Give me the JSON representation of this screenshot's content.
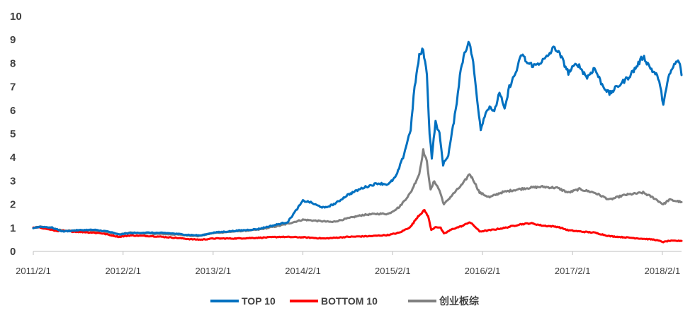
{
  "chart_data": {
    "type": "line",
    "title": "",
    "xlabel": "",
    "ylabel": "",
    "x_range": [
      "2011-02-01",
      "2018-04-20"
    ],
    "ylim": [
      0,
      10
    ],
    "y_ticks": [
      "0",
      "1",
      "2",
      "3",
      "4",
      "5",
      "6",
      "7",
      "8",
      "9",
      "10"
    ],
    "x_ticks": [
      "2011/2/1",
      "2012/2/1",
      "2013/2/1",
      "2014/2/1",
      "2015/2/1",
      "2016/2/1",
      "2017/2/1",
      "2018/2/1"
    ],
    "grid": false,
    "legend_position": "bottom",
    "series": [
      {
        "name": "TOP 10",
        "color": "#0070C0",
        "points": [
          [
            "2011-02-01",
            1.0
          ],
          [
            "2011-03-01",
            1.05
          ],
          [
            "2011-04-15",
            1.02
          ],
          [
            "2011-06-01",
            0.85
          ],
          [
            "2011-08-01",
            0.9
          ],
          [
            "2011-10-01",
            0.92
          ],
          [
            "2011-12-01",
            0.85
          ],
          [
            "2012-01-15",
            0.72
          ],
          [
            "2012-03-01",
            0.78
          ],
          [
            "2012-05-01",
            0.8
          ],
          [
            "2012-08-01",
            0.78
          ],
          [
            "2012-11-01",
            0.7
          ],
          [
            "2012-12-15",
            0.68
          ],
          [
            "2013-02-01",
            0.8
          ],
          [
            "2013-04-01",
            0.85
          ],
          [
            "2013-06-01",
            0.9
          ],
          [
            "2013-08-01",
            0.95
          ],
          [
            "2013-10-01",
            1.1
          ],
          [
            "2013-12-01",
            1.25
          ],
          [
            "2014-01-01",
            1.7
          ],
          [
            "2014-02-01",
            2.15
          ],
          [
            "2014-03-01",
            2.1
          ],
          [
            "2014-04-01",
            1.95
          ],
          [
            "2014-05-01",
            1.85
          ],
          [
            "2014-06-15",
            2.05
          ],
          [
            "2014-08-01",
            2.4
          ],
          [
            "2014-10-01",
            2.7
          ],
          [
            "2014-12-01",
            2.9
          ],
          [
            "2015-01-15",
            2.85
          ],
          [
            "2015-02-15",
            3.2
          ],
          [
            "2015-03-15",
            4.0
          ],
          [
            "2015-04-15",
            5.2
          ],
          [
            "2015-05-01",
            7.0
          ],
          [
            "2015-05-20",
            8.3
          ],
          [
            "2015-06-05",
            8.6
          ],
          [
            "2015-06-20",
            7.5
          ],
          [
            "2015-07-01",
            5.0
          ],
          [
            "2015-07-10",
            4.0
          ],
          [
            "2015-07-25",
            5.5
          ],
          [
            "2015-08-10",
            5.0
          ],
          [
            "2015-08-25",
            3.7
          ],
          [
            "2015-09-15",
            4.1
          ],
          [
            "2015-10-15",
            6.0
          ],
          [
            "2015-11-01",
            7.5
          ],
          [
            "2015-11-20",
            8.5
          ],
          [
            "2015-12-10",
            8.9
          ],
          [
            "2015-12-25",
            8.0
          ],
          [
            "2016-01-10",
            6.5
          ],
          [
            "2016-01-25",
            5.2
          ],
          [
            "2016-02-10",
            5.8
          ],
          [
            "2016-03-01",
            6.2
          ],
          [
            "2016-03-20",
            5.9
          ],
          [
            "2016-04-10",
            6.8
          ],
          [
            "2016-05-01",
            6.0
          ],
          [
            "2016-05-20",
            7.0
          ],
          [
            "2016-06-15",
            7.6
          ],
          [
            "2016-07-10",
            8.4
          ],
          [
            "2016-08-01",
            8.0
          ],
          [
            "2016-09-01",
            7.9
          ],
          [
            "2016-10-15",
            8.2
          ],
          [
            "2016-11-20",
            8.7
          ],
          [
            "2016-12-15",
            8.3
          ],
          [
            "2017-01-15",
            7.6
          ],
          [
            "2017-02-20",
            8.0
          ],
          [
            "2017-04-01",
            7.4
          ],
          [
            "2017-05-01",
            7.8
          ],
          [
            "2017-06-01",
            7.1
          ],
          [
            "2017-07-01",
            6.7
          ],
          [
            "2017-08-01",
            7.0
          ],
          [
            "2017-09-15",
            7.4
          ],
          [
            "2017-10-15",
            7.8
          ],
          [
            "2017-11-15",
            8.3
          ],
          [
            "2017-12-15",
            7.8
          ],
          [
            "2018-01-15",
            7.4
          ],
          [
            "2018-02-05",
            6.3
          ],
          [
            "2018-03-01",
            7.5
          ],
          [
            "2018-03-25",
            8.0
          ],
          [
            "2018-04-10",
            8.1
          ],
          [
            "2018-04-20",
            7.5
          ]
        ]
      },
      {
        "name": "BOTTOM 10",
        "color": "#FF0000",
        "points": [
          [
            "2011-02-01",
            1.0
          ],
          [
            "2011-03-01",
            1.02
          ],
          [
            "2011-05-01",
            0.88
          ],
          [
            "2011-07-01",
            0.85
          ],
          [
            "2011-09-01",
            0.82
          ],
          [
            "2011-11-01",
            0.78
          ],
          [
            "2012-01-15",
            0.62
          ],
          [
            "2012-03-01",
            0.68
          ],
          [
            "2012-06-01",
            0.65
          ],
          [
            "2012-09-01",
            0.58
          ],
          [
            "2012-11-01",
            0.52
          ],
          [
            "2012-12-15",
            0.5
          ],
          [
            "2013-02-01",
            0.55
          ],
          [
            "2013-05-01",
            0.55
          ],
          [
            "2013-08-01",
            0.58
          ],
          [
            "2013-11-01",
            0.62
          ],
          [
            "2014-02-01",
            0.6
          ],
          [
            "2014-05-01",
            0.55
          ],
          [
            "2014-08-01",
            0.62
          ],
          [
            "2014-11-01",
            0.65
          ],
          [
            "2015-01-15",
            0.7
          ],
          [
            "2015-03-01",
            0.8
          ],
          [
            "2015-04-15",
            1.05
          ],
          [
            "2015-05-15",
            1.5
          ],
          [
            "2015-06-10",
            1.75
          ],
          [
            "2015-06-25",
            1.5
          ],
          [
            "2015-07-08",
            0.9
          ],
          [
            "2015-07-25",
            1.05
          ],
          [
            "2015-08-15",
            1.0
          ],
          [
            "2015-08-28",
            0.75
          ],
          [
            "2015-10-01",
            0.95
          ],
          [
            "2015-11-15",
            1.1
          ],
          [
            "2015-12-10",
            1.25
          ],
          [
            "2015-12-28",
            1.1
          ],
          [
            "2016-01-20",
            0.85
          ],
          [
            "2016-03-01",
            0.9
          ],
          [
            "2016-05-01",
            1.0
          ],
          [
            "2016-07-01",
            1.15
          ],
          [
            "2016-08-15",
            1.2
          ],
          [
            "2016-10-01",
            1.1
          ],
          [
            "2016-12-01",
            1.05
          ],
          [
            "2017-01-15",
            0.9
          ],
          [
            "2017-03-01",
            0.85
          ],
          [
            "2017-05-01",
            0.8
          ],
          [
            "2017-07-01",
            0.65
          ],
          [
            "2017-09-01",
            0.6
          ],
          [
            "2017-11-01",
            0.55
          ],
          [
            "2018-01-01",
            0.5
          ],
          [
            "2018-02-05",
            0.4
          ],
          [
            "2018-03-01",
            0.45
          ],
          [
            "2018-04-20",
            0.45
          ]
        ]
      },
      {
        "name": "创业板综",
        "color": "#808080",
        "points": [
          [
            "2011-02-01",
            1.0
          ],
          [
            "2011-03-01",
            1.05
          ],
          [
            "2011-05-01",
            0.92
          ],
          [
            "2011-07-01",
            0.88
          ],
          [
            "2011-09-01",
            0.9
          ],
          [
            "2011-11-01",
            0.88
          ],
          [
            "2012-01-15",
            0.72
          ],
          [
            "2012-03-01",
            0.8
          ],
          [
            "2012-06-01",
            0.75
          ],
          [
            "2012-09-01",
            0.72
          ],
          [
            "2012-12-01",
            0.65
          ],
          [
            "2013-02-01",
            0.78
          ],
          [
            "2013-05-01",
            0.85
          ],
          [
            "2013-08-01",
            0.92
          ],
          [
            "2013-11-01",
            1.1
          ],
          [
            "2014-02-01",
            1.35
          ],
          [
            "2014-04-01",
            1.3
          ],
          [
            "2014-06-01",
            1.25
          ],
          [
            "2014-08-01",
            1.4
          ],
          [
            "2014-10-01",
            1.55
          ],
          [
            "2014-12-01",
            1.6
          ],
          [
            "2015-01-15",
            1.6
          ],
          [
            "2015-03-01",
            1.9
          ],
          [
            "2015-04-15",
            2.5
          ],
          [
            "2015-05-20",
            3.3
          ],
          [
            "2015-06-05",
            4.3
          ],
          [
            "2015-06-20",
            3.8
          ],
          [
            "2015-07-05",
            2.6
          ],
          [
            "2015-07-20",
            3.0
          ],
          [
            "2015-08-10",
            2.6
          ],
          [
            "2015-08-28",
            2.0
          ],
          [
            "2015-10-01",
            2.4
          ],
          [
            "2015-11-15",
            2.9
          ],
          [
            "2015-12-10",
            3.3
          ],
          [
            "2015-12-28",
            3.0
          ],
          [
            "2016-01-20",
            2.5
          ],
          [
            "2016-03-01",
            2.3
          ],
          [
            "2016-04-15",
            2.5
          ],
          [
            "2016-06-01",
            2.6
          ],
          [
            "2016-08-01",
            2.7
          ],
          [
            "2016-10-01",
            2.75
          ],
          [
            "2016-12-01",
            2.7
          ],
          [
            "2017-01-15",
            2.5
          ],
          [
            "2017-03-01",
            2.65
          ],
          [
            "2017-05-01",
            2.5
          ],
          [
            "2017-07-01",
            2.2
          ],
          [
            "2017-09-01",
            2.4
          ],
          [
            "2017-11-15",
            2.5
          ],
          [
            "2018-01-01",
            2.25
          ],
          [
            "2018-02-05",
            2.0
          ],
          [
            "2018-03-01",
            2.2
          ],
          [
            "2018-04-20",
            2.1
          ]
        ]
      }
    ]
  }
}
